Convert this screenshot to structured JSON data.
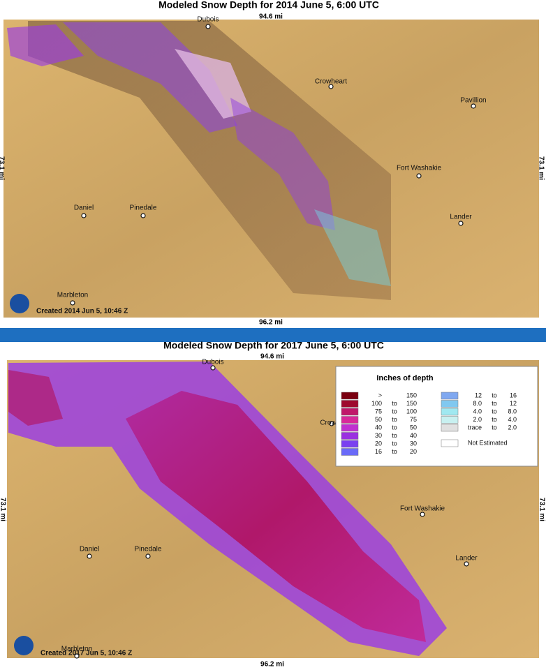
{
  "panels": [
    {
      "title": "Modeled Snow Depth for 2014 June 5, 6:00 UTC",
      "top_distance": "94.6 mi",
      "bottom_distance": "96.2 mi",
      "side_distance": "73.1 mi",
      "created": "Created 2014 Jun 5, 10:46 Z",
      "towns": [
        "Dubois",
        "Crowheart",
        "Pavillion",
        "Fort Washakie",
        "Lander",
        "Daniel",
        "Pinedale",
        "Marbleton"
      ]
    },
    {
      "title": "Modeled Snow Depth for 2017 June 5, 6:00 UTC",
      "top_distance": "94.6 mi",
      "bottom_distance": "96.2 mi",
      "side_distance": "73.1 mi",
      "created": "Created 2017 Jun 5, 10:46 Z",
      "towns": [
        "Dubois",
        "Crow",
        "Fort Washakie",
        "Lander",
        "Daniel",
        "Pinedale",
        "Marbleton"
      ]
    }
  ],
  "legend": {
    "title": "Inches of depth",
    "left": [
      {
        "low": ">",
        "high": "150",
        "color": "#7a0010"
      },
      {
        "low": "100",
        "sep": "to",
        "high": "150",
        "color": "#9e0a2e"
      },
      {
        "low": "75",
        "sep": "to",
        "high": "100",
        "color": "#c0186a"
      },
      {
        "low": "50",
        "sep": "to",
        "high": "75",
        "color": "#d8289a"
      },
      {
        "low": "40",
        "sep": "to",
        "high": "50",
        "color": "#c030d0"
      },
      {
        "low": "30",
        "sep": "to",
        "high": "40",
        "color": "#9a30e0"
      },
      {
        "low": "20",
        "sep": "to",
        "high": "30",
        "color": "#7a40f0"
      },
      {
        "low": "16",
        "sep": "to",
        "high": "20",
        "color": "#6a6af8"
      }
    ],
    "right": [
      {
        "low": "12",
        "sep": "to",
        "high": "16",
        "color": "#80a8f0"
      },
      {
        "low": "8.0",
        "sep": "to",
        "high": "12",
        "color": "#80c8f0"
      },
      {
        "low": "4.0",
        "sep": "to",
        "high": "8.0",
        "color": "#a0e8f0"
      },
      {
        "low": "2.0",
        "sep": "to",
        "high": "4.0",
        "color": "#c8f0f0"
      },
      {
        "low": "trace",
        "sep": "to",
        "high": "2.0",
        "color": "#e0e0e0"
      }
    ],
    "not_estimated": "Not Estimated"
  }
}
